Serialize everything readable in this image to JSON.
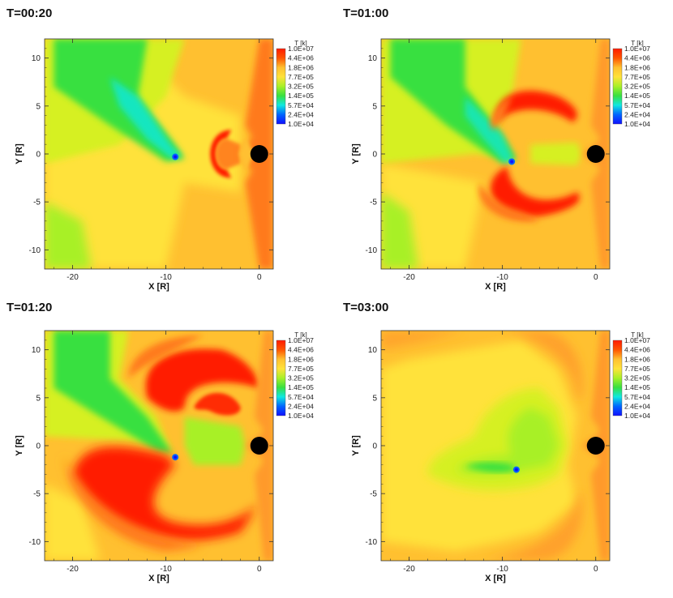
{
  "chart_data": [
    {
      "type": "heatmap",
      "title": "T=00:20",
      "xlabel": "X [R]",
      "ylabel": "Y [R]",
      "xlim": [
        -23,
        1.5
      ],
      "ylim": [
        -12,
        12
      ],
      "xticks": [
        -20,
        -10,
        0
      ],
      "yticks": [
        -10,
        -5,
        0,
        5,
        10
      ],
      "colorbar": {
        "title": "T [k]",
        "labels": [
          "1.0E+07",
          "4.4E+06",
          "1.8E+06",
          "7.7E+05",
          "3.2E+05",
          "1.4E+05",
          "5.7E+04",
          "2.4E+04",
          "1.0E+04"
        ]
      },
      "features": {
        "planet_center": [
          0,
          0
        ],
        "moon_center": [
          -9,
          -0.3
        ]
      }
    },
    {
      "type": "heatmap",
      "title": "T=01:00",
      "xlabel": "X [R]",
      "ylabel": "Y [R]",
      "xlim": [
        -23,
        1.5
      ],
      "ylim": [
        -12,
        12
      ],
      "xticks": [
        -20,
        -10,
        0
      ],
      "yticks": [
        -10,
        -5,
        0,
        5,
        10
      ],
      "colorbar": {
        "title": "T [k]",
        "labels": [
          "1.0E+07",
          "4.4E+06",
          "1.8E+06",
          "7.7E+05",
          "3.2E+05",
          "1.4E+05",
          "5.7E+04",
          "2.4E+04",
          "1.0E+04"
        ]
      },
      "features": {
        "planet_center": [
          0,
          0
        ],
        "moon_center": [
          -9,
          -0.8
        ]
      }
    },
    {
      "type": "heatmap",
      "title": "T=01:20",
      "xlabel": "X [R]",
      "ylabel": "Y [R]",
      "xlim": [
        -23,
        1.5
      ],
      "ylim": [
        -12,
        12
      ],
      "xticks": [
        -20,
        -10,
        0
      ],
      "yticks": [
        -10,
        -5,
        0,
        5,
        10
      ],
      "colorbar": {
        "title": "T [k]",
        "labels": [
          "1.0E+07",
          "4.4E+06",
          "1.8E+06",
          "7.7E+05",
          "3.2E+05",
          "1.4E+05",
          "5.7E+04",
          "2.4E+04",
          "1.0E+04"
        ]
      },
      "features": {
        "planet_center": [
          0,
          0
        ],
        "moon_center": [
          -9,
          -1.2
        ]
      }
    },
    {
      "type": "heatmap",
      "title": "T=03:00",
      "xlabel": "X [R]",
      "ylabel": "Y [R]",
      "xlim": [
        -23,
        1.5
      ],
      "ylim": [
        -12,
        12
      ],
      "xticks": [
        -20,
        -10,
        0
      ],
      "yticks": [
        -10,
        -5,
        0,
        5,
        10
      ],
      "colorbar": {
        "title": "T [k]",
        "labels": [
          "1.0E+07",
          "4.4E+06",
          "1.8E+06",
          "7.7E+05",
          "3.2E+05",
          "1.4E+05",
          "5.7E+04",
          "2.4E+04",
          "1.0E+04"
        ]
      },
      "features": {
        "planet_center": [
          0,
          0
        ],
        "moon_center": [
          -8.5,
          -2.5
        ]
      }
    }
  ],
  "colors": {
    "red": "#ff1a00",
    "orange": "#ff7a1a",
    "orange_light": "#ff9a2a",
    "yellow_orange": "#ffc030",
    "yellow": "#ffe23a",
    "yellow_green": "#d6f020",
    "light_green": "#a8f028",
    "green": "#38e040",
    "cyan": "#10e8e0",
    "blue": "#0066ff",
    "dark_blue": "#1010ff",
    "planet": "#000000"
  }
}
